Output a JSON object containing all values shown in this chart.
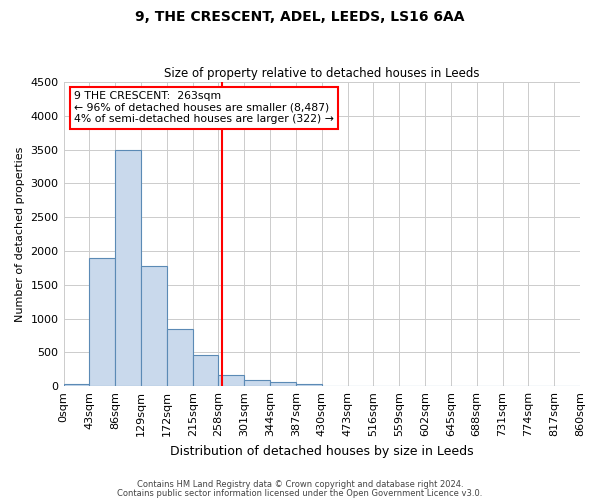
{
  "title": "9, THE CRESCENT, ADEL, LEEDS, LS16 6AA",
  "subtitle": "Size of property relative to detached houses in Leeds",
  "xlabel": "Distribution of detached houses by size in Leeds",
  "ylabel": "Number of detached properties",
  "bin_labels": [
    "0sqm",
    "43sqm",
    "86sqm",
    "129sqm",
    "172sqm",
    "215sqm",
    "258sqm",
    "301sqm",
    "344sqm",
    "387sqm",
    "430sqm",
    "473sqm",
    "516sqm",
    "559sqm",
    "602sqm",
    "645sqm",
    "688sqm",
    "731sqm",
    "774sqm",
    "817sqm",
    "860sqm"
  ],
  "bar_values": [
    30,
    1900,
    3500,
    1780,
    850,
    460,
    165,
    95,
    55,
    30,
    0,
    0,
    0,
    0,
    0,
    0,
    0,
    0,
    0,
    0
  ],
  "bar_color": "#c9d9ec",
  "bar_edge_color": "#5b8ab5",
  "property_line_bin_index": 6.12,
  "annotation_title": "9 THE CRESCENT:  263sqm",
  "annotation_line1": "← 96% of detached houses are smaller (8,487)",
  "annotation_line2": "4% of semi-detached houses are larger (322) →",
  "footer_line1": "Contains HM Land Registry data © Crown copyright and database right 2024.",
  "footer_line2": "Contains public sector information licensed under the Open Government Licence v3.0.",
  "ylim": [
    0,
    4500
  ],
  "background_color": "#ffffff",
  "grid_color": "#cccccc"
}
